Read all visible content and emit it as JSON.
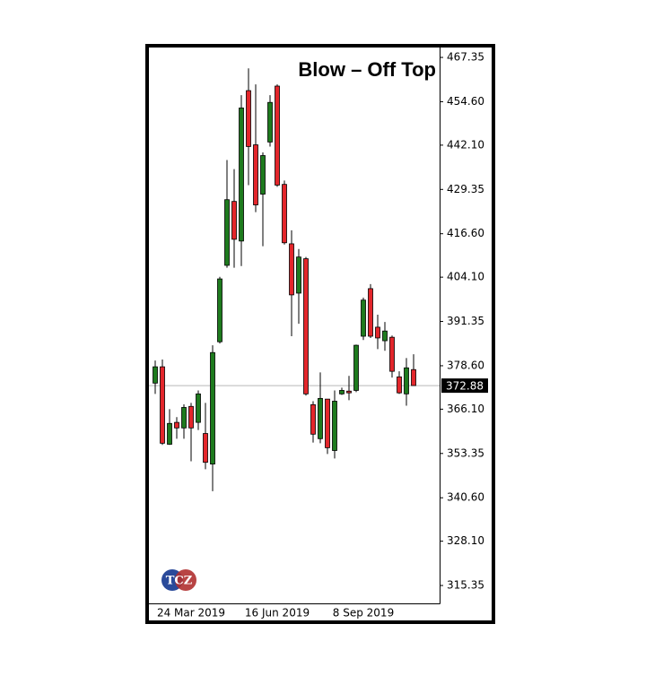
{
  "chart_data": {
    "type": "candlestick",
    "title": "Blow – Off Top",
    "logo": "TCZ",
    "categories": [
      null,
      null,
      null,
      null,
      null,
      "24 Mar 2019",
      null,
      null,
      null,
      null,
      null,
      null,
      null,
      null,
      null,
      null,
      null,
      "16 Jun 2019",
      null,
      null,
      null,
      null,
      null,
      null,
      null,
      null,
      null,
      null,
      null,
      "8 Sep 2019",
      null,
      null,
      null,
      null,
      null,
      null,
      null
    ],
    "open": [
      373.6,
      378.3,
      356.0,
      362.3,
      360.7,
      366.9,
      362.3,
      359.1,
      350.3,
      385.5,
      407.5,
      425.9,
      414.5,
      457.8,
      442.2,
      428.0,
      443.0,
      459.1,
      430.8,
      413.7,
      399.5,
      409.4,
      367.4,
      357.6,
      369.0,
      354.2,
      370.5,
      371.3,
      371.5,
      387.1,
      400.8,
      389.7,
      385.8,
      386.8,
      375.4,
      370.5,
      377.5
    ],
    "high": [
      380.1,
      380.4,
      366.1,
      363.8,
      367.5,
      367.9,
      371.5,
      367.9,
      384.5,
      404.2,
      437.8,
      435.2,
      456.5,
      464.2,
      459.6,
      440.0,
      456.5,
      459.6,
      431.9,
      417.6,
      412.2,
      409.9,
      368.4,
      376.7,
      369.0,
      371.5,
      372.3,
      375.7,
      384.7,
      398.2,
      402.1,
      393.3,
      391.2,
      387.3,
      377.0,
      380.8,
      381.9
    ],
    "low": [
      370.5,
      355.8,
      355.8,
      357.6,
      357.6,
      351.1,
      360.1,
      348.8,
      342.5,
      385.0,
      406.8,
      406.8,
      407.3,
      430.6,
      422.8,
      413.0,
      441.7,
      430.1,
      413.5,
      387.1,
      390.7,
      370.0,
      356.5,
      356.3,
      353.2,
      351.9,
      370.2,
      368.7,
      371.0,
      386.0,
      386.6,
      383.4,
      382.9,
      375.2,
      370.5,
      367.1,
      372.9
    ],
    "close": [
      378.3,
      356.3,
      362.0,
      360.7,
      366.6,
      360.7,
      370.5,
      350.8,
      382.4,
      403.6,
      426.4,
      415.0,
      452.8,
      441.7,
      424.9,
      439.1,
      454.4,
      430.6,
      414.0,
      399.0,
      409.9,
      370.5,
      358.9,
      369.2,
      355.0,
      368.4,
      371.5,
      370.8,
      384.5,
      397.5,
      387.1,
      386.6,
      388.6,
      377.0,
      370.8,
      378.0,
      372.9
    ],
    "up_color": "#1e7b1e",
    "down_color": "#e3262b",
    "last_price": 372.88,
    "ylim": [
      310.2,
      470.2
    ],
    "yticks": [
      467.35,
      {
        "value": 454.6,
        "label": "454.60"
      },
      {
        "value": 442.1,
        "label": "442.10"
      },
      429.35,
      {
        "value": 416.6,
        "label": "416.60"
      },
      {
        "value": 404.1,
        "label": "404.10"
      },
      391.35,
      {
        "value": 378.6,
        "label": "378.60"
      },
      {
        "value": 366.1,
        "label": "366.10"
      },
      353.35,
      {
        "value": 340.6,
        "label": "340.60"
      },
      {
        "value": 328.1,
        "label": "328.10"
      },
      315.35
    ]
  }
}
